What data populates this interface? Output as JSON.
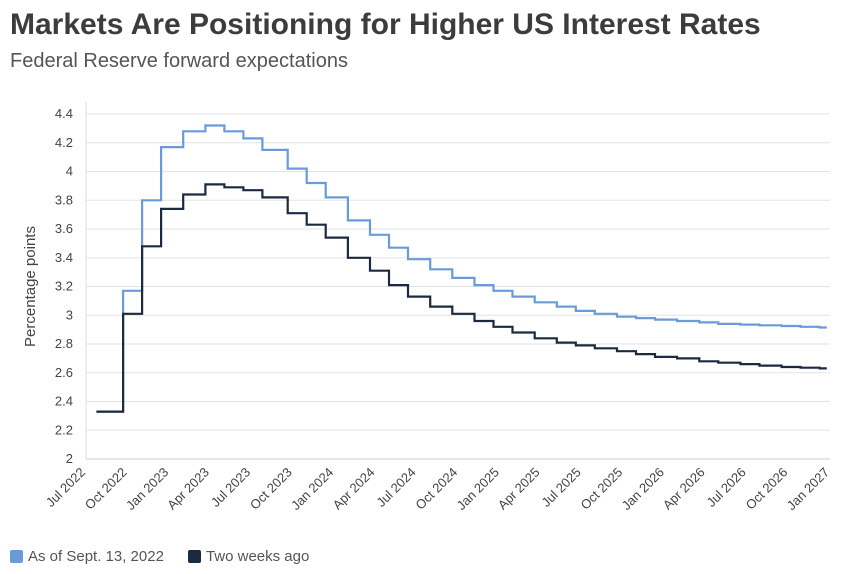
{
  "chart_data": {
    "type": "line",
    "title": "Markets Are Positioning for Higher US Interest Rates",
    "subtitle": "Federal Reserve forward expectations",
    "ylabel": "Percentage points",
    "xlabel": "",
    "ylim": [
      2,
      4.4
    ],
    "yticks": [
      "2",
      "2.2",
      "2.4",
      "2.6",
      "2.8",
      "3",
      "3.2",
      "3.4",
      "3.6",
      "3.8",
      "4",
      "4.2",
      "4.4"
    ],
    "xlim": [
      "2022-07-01",
      "2027-01-01"
    ],
    "xticks": [
      {
        "date": "2022-07-01",
        "label": "Jul 2022"
      },
      {
        "date": "2022-10-01",
        "label": "Oct 2022"
      },
      {
        "date": "2023-01-01",
        "label": "Jan 2023"
      },
      {
        "date": "2023-04-01",
        "label": "Apr 2023"
      },
      {
        "date": "2023-07-01",
        "label": "Jul 2023"
      },
      {
        "date": "2023-10-01",
        "label": "Oct 2023"
      },
      {
        "date": "2024-01-01",
        "label": "Jan 2024"
      },
      {
        "date": "2024-04-01",
        "label": "Apr 2024"
      },
      {
        "date": "2024-07-01",
        "label": "Jul 2024"
      },
      {
        "date": "2024-10-01",
        "label": "Oct 2024"
      },
      {
        "date": "2025-01-01",
        "label": "Jan 2025"
      },
      {
        "date": "2025-04-01",
        "label": "Apr 2025"
      },
      {
        "date": "2025-07-01",
        "label": "Jul 2025"
      },
      {
        "date": "2025-10-01",
        "label": "Oct 2025"
      },
      {
        "date": "2026-01-01",
        "label": "Jan 2026"
      },
      {
        "date": "2026-04-01",
        "label": "Apr 2026"
      },
      {
        "date": "2026-07-01",
        "label": "Jul 2026"
      },
      {
        "date": "2026-10-01",
        "label": "Oct 2026"
      },
      {
        "date": "2027-01-01",
        "label": "Jan 2027"
      }
    ],
    "grid": true,
    "legend_position": "bottom-left",
    "series": [
      {
        "name": "As of Sept. 13, 2022",
        "color": "#6a9bd8",
        "x": [
          "2022-07-24",
          "2022-08-28",
          "2022-09-21",
          "2022-11-02",
          "2022-12-14",
          "2023-02-01",
          "2023-03-22",
          "2023-05-03",
          "2023-06-14",
          "2023-07-26",
          "2023-09-20",
          "2023-11-01",
          "2023-12-13",
          "2024-01-31",
          "2024-03-20",
          "2024-05-01",
          "2024-06-12",
          "2024-07-31",
          "2024-09-18",
          "2024-11-06",
          "2024-12-18",
          "2025-01-29",
          "2025-03-19",
          "2025-05-07",
          "2025-06-18",
          "2025-07-30",
          "2025-09-17",
          "2025-10-29",
          "2025-12-10",
          "2026-01-28",
          "2026-03-18",
          "2026-04-29",
          "2026-06-17",
          "2026-07-29",
          "2026-09-16",
          "2026-10-28",
          "2026-12-09",
          "2026-12-25"
        ],
        "values": [
          2.33,
          2.33,
          3.17,
          3.8,
          4.17,
          4.28,
          4.32,
          4.28,
          4.23,
          4.15,
          4.02,
          3.92,
          3.82,
          3.66,
          3.56,
          3.47,
          3.39,
          3.32,
          3.26,
          3.21,
          3.17,
          3.13,
          3.09,
          3.06,
          3.03,
          3.01,
          2.99,
          2.98,
          2.97,
          2.96,
          2.95,
          2.94,
          2.935,
          2.93,
          2.925,
          2.92,
          2.915,
          2.915
        ]
      },
      {
        "name": "Two weeks ago",
        "color": "#1b2a40",
        "x": [
          "2022-07-24",
          "2022-08-28",
          "2022-09-21",
          "2022-11-02",
          "2022-12-14",
          "2023-02-01",
          "2023-03-22",
          "2023-05-03",
          "2023-06-14",
          "2023-07-26",
          "2023-09-20",
          "2023-11-01",
          "2023-12-13",
          "2024-01-31",
          "2024-03-20",
          "2024-05-01",
          "2024-06-12",
          "2024-07-31",
          "2024-09-18",
          "2024-11-06",
          "2024-12-18",
          "2025-01-29",
          "2025-03-19",
          "2025-05-07",
          "2025-06-18",
          "2025-07-30",
          "2025-09-17",
          "2025-10-29",
          "2025-12-10",
          "2026-01-28",
          "2026-03-18",
          "2026-04-29",
          "2026-06-17",
          "2026-07-29",
          "2026-09-16",
          "2026-10-28",
          "2026-12-09",
          "2026-12-25"
        ],
        "values": [
          2.33,
          2.33,
          3.01,
          3.48,
          3.74,
          3.84,
          3.91,
          3.89,
          3.87,
          3.82,
          3.71,
          3.63,
          3.54,
          3.4,
          3.31,
          3.21,
          3.13,
          3.06,
          3.01,
          2.96,
          2.92,
          2.88,
          2.84,
          2.81,
          2.79,
          2.77,
          2.75,
          2.73,
          2.71,
          2.7,
          2.68,
          2.67,
          2.66,
          2.65,
          2.64,
          2.635,
          2.63,
          2.63
        ]
      }
    ]
  }
}
